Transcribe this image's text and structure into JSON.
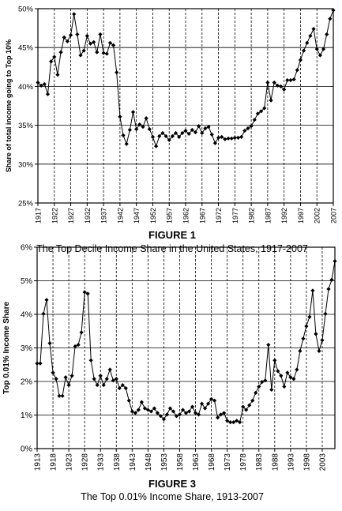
{
  "chart_data": [
    {
      "type": "line",
      "figure_label": "FIGURE 1",
      "title": "The Top Decile Income Share in the United States, 1917-2007",
      "ylabel": "Share of total income going to Top 10%",
      "xlabel": "",
      "ylim": [
        0.25,
        0.5
      ],
      "xlim": [
        1917,
        2007
      ],
      "grid": "horizontal solid, vertical dashed",
      "y_ticks": [
        "25%",
        "30%",
        "35%",
        "40%",
        "45%",
        "50%"
      ],
      "x_ticks": [
        "1917",
        "1922",
        "1927",
        "1932",
        "1937",
        "1942",
        "1947",
        "1952",
        "1957",
        "1962",
        "1967",
        "1972",
        "1977",
        "1982",
        "1987",
        "1992",
        "1997",
        "2002",
        "2007"
      ],
      "colors": {
        "line": "#000000",
        "marker": "#000000",
        "grid": "#000000"
      },
      "series": [
        {
          "x": [
            1917,
            1918,
            1919,
            1920,
            1921,
            1922,
            1923,
            1924,
            1925,
            1926,
            1927,
            1928,
            1929,
            1930,
            1931,
            1932,
            1933,
            1934,
            1935,
            1936,
            1937,
            1938,
            1939,
            1940,
            1941,
            1942,
            1943,
            1944,
            1945,
            1946,
            1947,
            1948,
            1949,
            1950,
            1951,
            1952,
            1953,
            1954,
            1955,
            1956,
            1957,
            1958,
            1959,
            1960,
            1961,
            1962,
            1963,
            1964,
            1965,
            1966,
            1967,
            1968,
            1969,
            1970,
            1971,
            1972,
            1973,
            1974,
            1975,
            1976,
            1977,
            1978,
            1979,
            1980,
            1981,
            1982,
            1983,
            1984,
            1985,
            1986,
            1987,
            1988,
            1989,
            1990,
            1991,
            1992,
            1993,
            1994,
            1995,
            1996,
            1997,
            1998,
            1999,
            2000,
            2001,
            2002,
            2003,
            2004,
            2005,
            2006,
            2007
          ],
          "values": [
            0.405,
            0.401,
            0.403,
            0.39,
            0.432,
            0.438,
            0.415,
            0.444,
            0.463,
            0.458,
            0.466,
            0.493,
            0.467,
            0.44,
            0.446,
            0.465,
            0.455,
            0.457,
            0.444,
            0.467,
            0.443,
            0.442,
            0.456,
            0.453,
            0.418,
            0.361,
            0.337,
            0.326,
            0.344,
            0.367,
            0.345,
            0.351,
            0.348,
            0.359,
            0.345,
            0.335,
            0.323,
            0.336,
            0.34,
            0.336,
            0.331,
            0.336,
            0.34,
            0.335,
            0.34,
            0.343,
            0.339,
            0.344,
            0.341,
            0.349,
            0.34,
            0.346,
            0.348,
            0.338,
            0.327,
            0.334,
            0.335,
            0.332,
            0.333,
            0.333,
            0.334,
            0.334,
            0.335,
            0.343,
            0.346,
            0.349,
            0.357,
            0.365,
            0.368,
            0.372,
            0.405,
            0.382,
            0.405,
            0.401,
            0.4,
            0.396,
            0.408,
            0.408,
            0.409,
            0.421,
            0.434,
            0.446,
            0.456,
            0.465,
            0.474,
            0.448,
            0.44,
            0.448,
            0.467,
            0.487,
            0.498
          ]
        }
      ]
    },
    {
      "type": "line",
      "figure_label": "FIGURE 3",
      "title": "The Top 0.01% Income Share, 1913-2007",
      "ylabel": "Top 0.01% Income Share",
      "xlabel": "",
      "ylim": [
        0.0,
        6.5
      ],
      "xlim": [
        1913,
        2007
      ],
      "grid": "horizontal solid, vertical dashed",
      "y_ticks": [
        "0%",
        "1%",
        "2%",
        "3%",
        "4%",
        "5%",
        "6%"
      ],
      "x_ticks": [
        "1913",
        "1918",
        "1923",
        "1928",
        "1933",
        "1938",
        "1943",
        "1948",
        "1953",
        "1958",
        "1963",
        "1968",
        "1973",
        "1978",
        "1983",
        "1988",
        "1993",
        "1998",
        "2003"
      ],
      "colors": {
        "line": "#000000",
        "marker": "#000000",
        "grid": "#000000"
      },
      "series": [
        {
          "x": [
            1913,
            1914,
            1915,
            1916,
            1917,
            1918,
            1919,
            1920,
            1921,
            1922,
            1923,
            1924,
            1925,
            1926,
            1927,
            1928,
            1929,
            1930,
            1931,
            1932,
            1933,
            1934,
            1935,
            1936,
            1937,
            1938,
            1939,
            1940,
            1941,
            1942,
            1943,
            1944,
            1945,
            1946,
            1947,
            1948,
            1949,
            1950,
            1951,
            1952,
            1953,
            1954,
            1955,
            1956,
            1957,
            1958,
            1959,
            1960,
            1961,
            1962,
            1963,
            1964,
            1965,
            1966,
            1967,
            1968,
            1969,
            1970,
            1971,
            1972,
            1973,
            1974,
            1975,
            1976,
            1977,
            1978,
            1979,
            1980,
            1981,
            1982,
            1983,
            1984,
            1985,
            1986,
            1987,
            1988,
            1989,
            1990,
            1991,
            1992,
            1993,
            1994,
            1995,
            1996,
            1997,
            1998,
            1999,
            2000,
            2001,
            2002,
            2003,
            2004,
            2005,
            2006,
            2007
          ],
          "values": [
            2.75,
            2.75,
            4.35,
            4.8,
            3.4,
            2.45,
            2.25,
            1.7,
            1.7,
            2.3,
            2.05,
            2.35,
            3.3,
            3.35,
            3.75,
            5.05,
            5.0,
            2.85,
            2.25,
            2.05,
            2.35,
            2.05,
            2.25,
            2.55,
            2.2,
            2.25,
            1.95,
            2.05,
            1.95,
            1.55,
            1.2,
            1.15,
            1.25,
            1.5,
            1.3,
            1.25,
            1.2,
            1.3,
            1.15,
            1.05,
            0.95,
            1.1,
            1.3,
            1.2,
            1.05,
            1.1,
            1.25,
            1.15,
            1.2,
            1.35,
            1.15,
            1.1,
            1.45,
            1.3,
            1.45,
            1.6,
            1.55,
            1.0,
            1.1,
            1.15,
            0.9,
            0.85,
            0.85,
            0.9,
            0.85,
            1.35,
            1.25,
            1.4,
            1.55,
            1.8,
            2.0,
            2.15,
            2.2,
            3.35,
            1.9,
            2.85,
            2.5,
            2.35,
            2.0,
            2.45,
            2.3,
            2.25,
            2.55,
            3.15,
            3.55,
            3.95,
            4.25,
            5.1,
            3.7,
            3.15,
            3.5,
            4.35,
            5.15,
            5.45,
            6.05
          ]
        }
      ]
    }
  ]
}
